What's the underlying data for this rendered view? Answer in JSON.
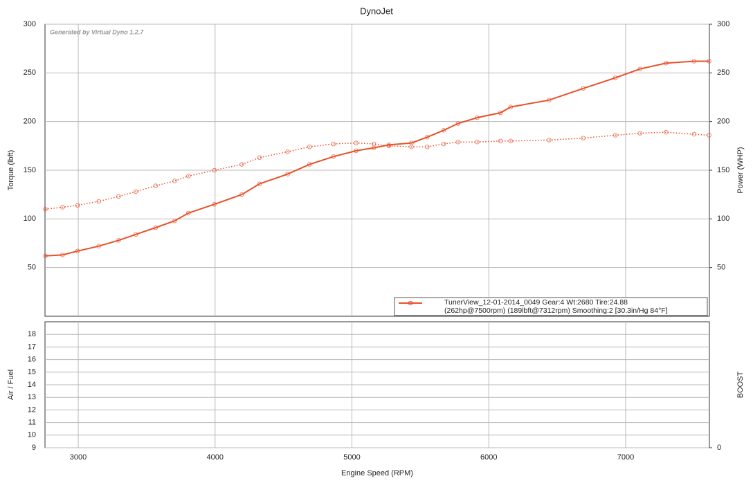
{
  "chart_data": [
    {
      "type": "line",
      "title": "DynoJet",
      "ylabel": "Torque (lbft)",
      "y2label": "Power (WHP)",
      "annotation": "Generated by Virtual Dyno 1.2.7",
      "x": [
        2760,
        2885,
        2995,
        3150,
        3295,
        3420,
        3565,
        3705,
        3805,
        3995,
        4195,
        4325,
        4530,
        4690,
        4865,
        5030,
        5160,
        5270,
        5435,
        5550,
        5670,
        5775,
        5915,
        6085,
        6160,
        6440,
        6690,
        6925,
        7105,
        7295,
        7500,
        7610
      ],
      "series": [
        {
          "color": "#e8502a",
          "line_style": "solid",
          "axis": "y2",
          "values": [
            62,
            63,
            67,
            72,
            78,
            84,
            91,
            98,
            106,
            115,
            125,
            136,
            146,
            156,
            164,
            170,
            173,
            176,
            178,
            184,
            191,
            198,
            204,
            209,
            215,
            222,
            234,
            245,
            254,
            260,
            262,
            262
          ]
        },
        {
          "color": "#e8502a",
          "line_style": "dotted",
          "values": [
            110,
            112,
            114,
            118,
            123,
            128,
            134,
            139,
            144,
            150,
            156,
            163,
            169,
            174,
            177,
            178,
            177,
            175,
            174,
            174,
            177,
            179,
            179,
            180,
            180,
            181,
            183,
            186,
            188,
            189,
            187,
            186
          ]
        }
      ],
      "legend": {
        "loc": "lower right",
        "color": "#e8502a",
        "text": [
          "TunerView_12-01-2014_0049 Gear:4 Wt:2680 Tire:24.88",
          "(262hp@7500rpm) (189lbft@7312rpm) Smoothing:2 [30.3in/Hg 84°F]"
        ]
      },
      "xlim": [
        2757,
        7612
      ],
      "xticks": [
        3000,
        4000,
        5000,
        6000,
        7000
      ],
      "ylim": [
        0,
        300
      ],
      "yticks": [
        50,
        100,
        150,
        200,
        250,
        300
      ],
      "y2lim": [
        0,
        300
      ],
      "y2ticks": [
        50,
        100,
        150,
        200,
        250,
        300
      ],
      "grid": true
    },
    {
      "type": "line",
      "ylabel": "Air / Fuel",
      "y2label": "BOOST",
      "xlabel": "Engine Speed (RPM)",
      "xlim": [
        2757,
        7612
      ],
      "xticks": [
        3000,
        4000,
        5000,
        6000,
        7000
      ],
      "ylim": [
        9,
        19
      ],
      "yticks": [
        9,
        10,
        11,
        12,
        13,
        14,
        15,
        16,
        17,
        18
      ],
      "y2ticks": [
        0
      ],
      "grid": true
    }
  ]
}
